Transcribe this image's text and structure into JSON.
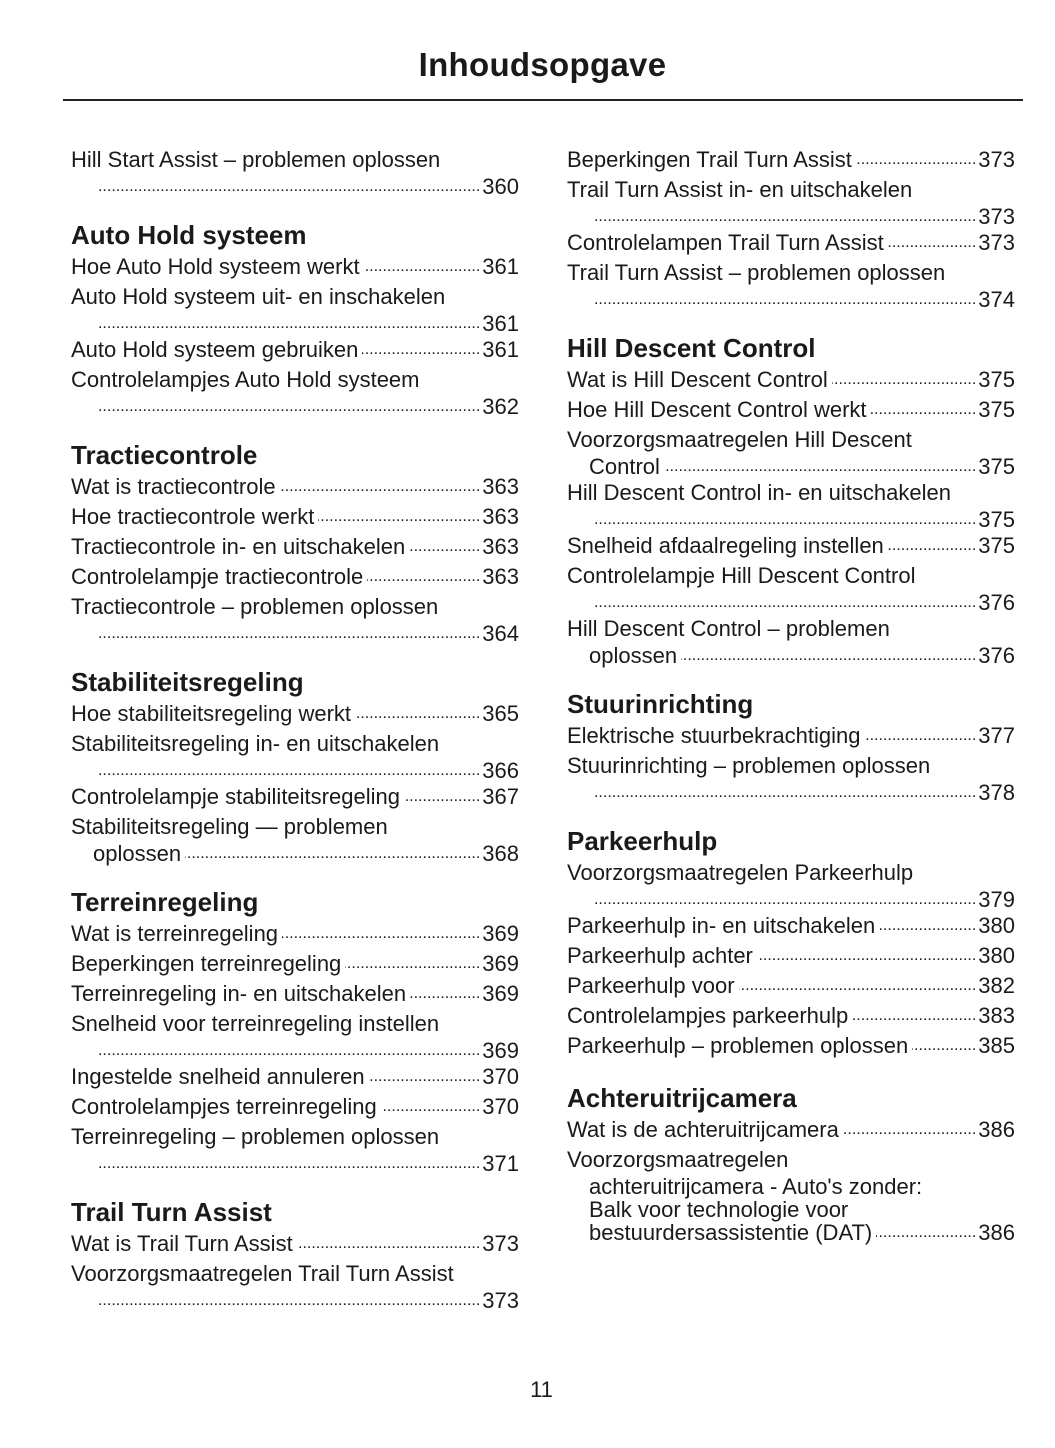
{
  "title": "Inhoudsopgave",
  "page_number": "11",
  "columns": [
    [
      {
        "type": "entry",
        "lines": [
          "Hill Start Assist – problemen oplossen",
          ""
        ],
        "page": "360"
      },
      {
        "type": "heading",
        "text": "Auto Hold systeem"
      },
      {
        "type": "entry",
        "lines": [
          "Hoe Auto Hold systeem werkt"
        ],
        "page": "361"
      },
      {
        "type": "entry",
        "lines": [
          "Auto Hold systeem uit- en inschakelen",
          ""
        ],
        "page": "361"
      },
      {
        "type": "entry",
        "lines": [
          "Auto Hold systeem gebruiken"
        ],
        "page": "361"
      },
      {
        "type": "entry",
        "lines": [
          "Controlelampjes Auto Hold systeem",
          ""
        ],
        "page": "362"
      },
      {
        "type": "heading",
        "text": "Tractiecontrole"
      },
      {
        "type": "entry",
        "lines": [
          "Wat is tractiecontrole"
        ],
        "page": "363"
      },
      {
        "type": "entry",
        "lines": [
          "Hoe tractiecontrole werkt"
        ],
        "page": "363"
      },
      {
        "type": "entry",
        "lines": [
          "Tractiecontrole in- en uitschakelen"
        ],
        "page": "363"
      },
      {
        "type": "entry",
        "lines": [
          "Controlelampje tractiecontrole"
        ],
        "page": "363"
      },
      {
        "type": "entry",
        "lines": [
          "Tractiecontrole – problemen oplossen",
          ""
        ],
        "page": "364"
      },
      {
        "type": "heading",
        "text": "Stabiliteitsregeling"
      },
      {
        "type": "entry",
        "lines": [
          "Hoe stabiliteitsregeling werkt"
        ],
        "page": "365"
      },
      {
        "type": "entry",
        "lines": [
          "Stabiliteitsregeling in- en uitschakelen",
          ""
        ],
        "page": "366"
      },
      {
        "type": "entry",
        "lines": [
          "Controlelampje stabiliteitsregeling"
        ],
        "page": "367"
      },
      {
        "type": "entry",
        "lines": [
          "Stabiliteitsregeling — problemen",
          "oplossen"
        ],
        "page": "368"
      },
      {
        "type": "heading",
        "text": "Terreinregeling"
      },
      {
        "type": "entry",
        "lines": [
          "Wat is terreinregeling"
        ],
        "page": "369"
      },
      {
        "type": "entry",
        "lines": [
          "Beperkingen terreinregeling"
        ],
        "page": "369"
      },
      {
        "type": "entry",
        "lines": [
          "Terreinregeling in- en uitschakelen"
        ],
        "page": "369"
      },
      {
        "type": "entry",
        "lines": [
          "Snelheid voor terreinregeling instellen",
          ""
        ],
        "page": "369"
      },
      {
        "type": "entry",
        "lines": [
          "Ingestelde snelheid annuleren"
        ],
        "page": "370"
      },
      {
        "type": "entry",
        "lines": [
          "Controlelampjes terreinregeling"
        ],
        "page": "370"
      },
      {
        "type": "entry",
        "lines": [
          "Terreinregeling – problemen oplossen",
          ""
        ],
        "page": "371"
      },
      {
        "type": "heading",
        "text": "Trail Turn Assist"
      },
      {
        "type": "entry",
        "lines": [
          "Wat is Trail Turn Assist"
        ],
        "page": "373"
      },
      {
        "type": "entry",
        "lines": [
          "Voorzorgsmaatregelen Trail Turn Assist",
          ""
        ],
        "page": "373"
      }
    ],
    [
      {
        "type": "entry",
        "lines": [
          "Beperkingen Trail Turn Assist"
        ],
        "page": "373"
      },
      {
        "type": "entry",
        "lines": [
          "Trail Turn Assist in- en uitschakelen",
          ""
        ],
        "page": "373"
      },
      {
        "type": "entry",
        "lines": [
          "Controlelampen Trail Turn Assist"
        ],
        "page": "373"
      },
      {
        "type": "entry",
        "lines": [
          "Trail Turn Assist – problemen oplossen",
          ""
        ],
        "page": "374"
      },
      {
        "type": "heading",
        "text": "Hill Descent Control"
      },
      {
        "type": "entry",
        "lines": [
          "Wat is Hill Descent Control"
        ],
        "page": "375"
      },
      {
        "type": "entry",
        "lines": [
          "Hoe Hill Descent Control werkt"
        ],
        "page": "375"
      },
      {
        "type": "entry",
        "lines": [
          "Voorzorgsmaatregelen Hill Descent",
          "Control"
        ],
        "page": "375"
      },
      {
        "type": "entry",
        "lines": [
          "Hill Descent Control in- en uitschakelen",
          ""
        ],
        "page": "375"
      },
      {
        "type": "entry",
        "lines": [
          "Snelheid afdaalregeling instellen"
        ],
        "page": "375"
      },
      {
        "type": "entry",
        "lines": [
          "Controlelampje Hill Descent Control",
          ""
        ],
        "page": "376"
      },
      {
        "type": "entry",
        "lines": [
          "Hill Descent Control – problemen",
          "oplossen"
        ],
        "page": "376"
      },
      {
        "type": "heading",
        "text": "Stuurinrichting"
      },
      {
        "type": "entry",
        "lines": [
          "Elektrische stuurbekrachtiging"
        ],
        "page": "377"
      },
      {
        "type": "entry",
        "lines": [
          "Stuurinrichting – problemen oplossen",
          ""
        ],
        "page": "378"
      },
      {
        "type": "heading",
        "text": "Parkeerhulp"
      },
      {
        "type": "entry",
        "lines": [
          "Voorzorgsmaatregelen Parkeerhulp",
          ""
        ],
        "page": "379"
      },
      {
        "type": "entry",
        "lines": [
          "Parkeerhulp in- en uitschakelen"
        ],
        "page": "380"
      },
      {
        "type": "entry",
        "lines": [
          "Parkeerhulp achter"
        ],
        "page": "380"
      },
      {
        "type": "entry",
        "lines": [
          "Parkeerhulp voor"
        ],
        "page": "382"
      },
      {
        "type": "entry",
        "lines": [
          "Controlelampjes parkeerhulp"
        ],
        "page": "383"
      },
      {
        "type": "entry",
        "lines": [
          "Parkeerhulp – problemen oplossen"
        ],
        "page": "385"
      },
      {
        "type": "heading",
        "text": "Achteruitrijcamera"
      },
      {
        "type": "entry",
        "lines": [
          "Wat is de achteruitrijcamera"
        ],
        "page": "386"
      },
      {
        "type": "entry",
        "lines": [
          "Voorzorgsmaatregelen",
          "achteruitrijcamera - Auto's zonder:",
          "Balk voor technologie voor",
          "bestuurdersassistentie (DAT)"
        ],
        "page": "386"
      }
    ]
  ]
}
